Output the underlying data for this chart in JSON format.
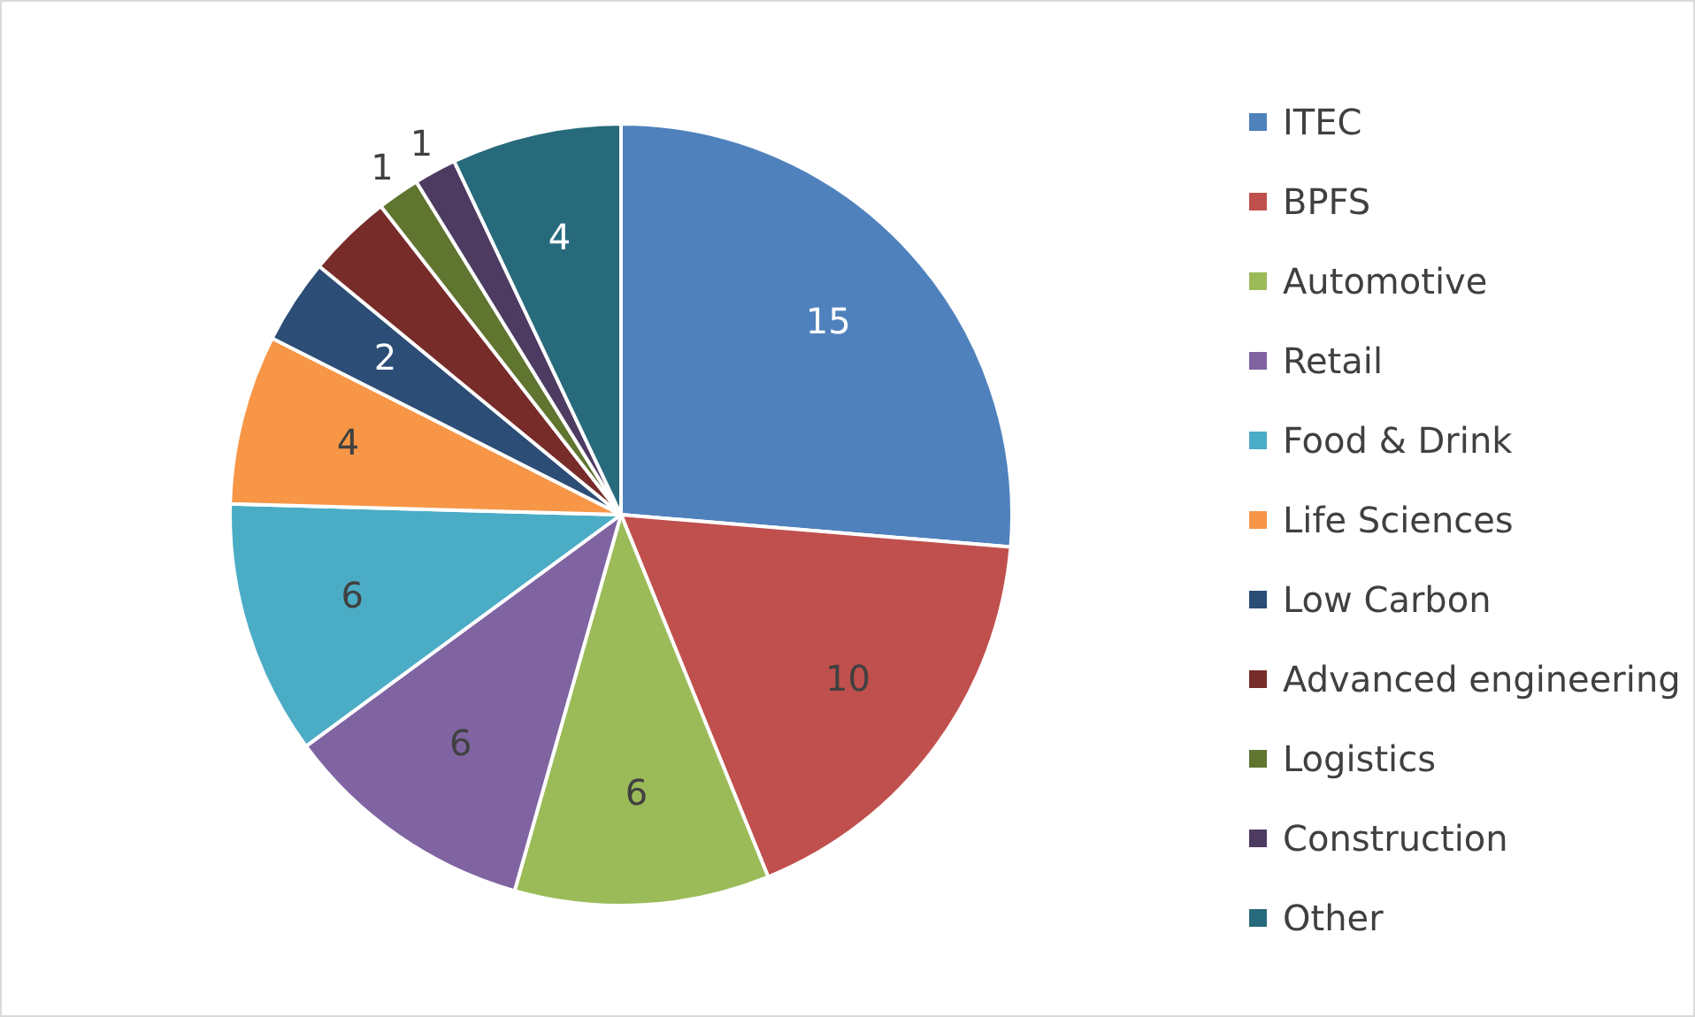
{
  "chart_data": {
    "type": "pie",
    "categories": [
      "ITEC",
      "BPFS",
      "Automotive",
      "Retail",
      "Food & Drink",
      "Life Sciences",
      "Low Carbon",
      "Advanced engineering",
      "Logistics",
      "Construction",
      "Other"
    ],
    "values": [
      15,
      10,
      6,
      6,
      6,
      4,
      2,
      2,
      1,
      1,
      4
    ],
    "value_labels": [
      "15",
      "10",
      "6",
      "6",
      "6",
      "4",
      "2",
      null,
      "1",
      "1",
      "4"
    ],
    "colors": [
      "#4f81bd",
      "#c0504d",
      "#9bbb59",
      "#8064a2",
      "#4bacc6",
      "#f79646",
      "#2c4d75",
      "#772c2a",
      "#5f7530",
      "#4d3b62",
      "#276a7c"
    ],
    "legend": "right"
  }
}
